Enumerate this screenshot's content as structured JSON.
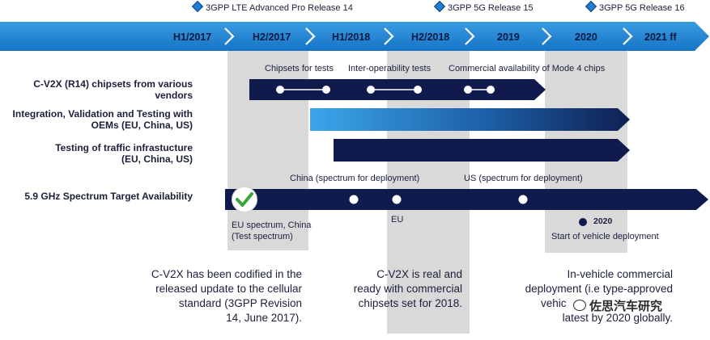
{
  "releases": [
    {
      "label": "3GPP LTE Advanced Pro Release 14"
    },
    {
      "label": "3GPP 5G Release 15"
    },
    {
      "label": "3GPP 5G Release 16"
    }
  ],
  "timeline": [
    "H1/2017",
    "H2/2017",
    "H1/2018",
    "H2/2018",
    "2019",
    "2020",
    "2021 ff"
  ],
  "rows": {
    "chipsets": {
      "label": "C-V2X (R14) chipsets from various vendors",
      "notes": [
        "Chipsets for tests",
        "Inter-operability tests",
        "Commercial availability of Mode 4 chips"
      ]
    },
    "integration": {
      "label_line1": "Integration, Validation and Testing with",
      "label_line2": "OEMs (EU, China, US)"
    },
    "infrastructure": {
      "label_line1": "Testing of traffic infrastucture",
      "label_line2": "(EU, China, US)"
    },
    "spectrum": {
      "label": "5.9 GHz Spectrum Target Availability",
      "china_note": "China (spectrum for deployment)",
      "us_note": "US (spectrum for deployment)",
      "eu_china_line1": "EU spectrum, China",
      "eu_china_line2": "(Test spectrum)",
      "eu_note": "EU",
      "legend_year": "2020",
      "legend_text": "Start of vehicle deployment"
    }
  },
  "paragraphs": {
    "left": [
      "C-V2X has been codified in the",
      "released update to the cellular",
      "standard (3GPP Revision",
      "14, June 2017)."
    ],
    "middle": [
      "C-V2X is real and",
      "ready with commercial",
      "chipsets set for 2018."
    ],
    "right": [
      "In-vehicle commercial",
      "deployment (i.e type-approved",
      "vehic",
      "latest by 2020 globally."
    ]
  },
  "watermark": "佐思汽车研究",
  "colors": {
    "timeline": "#1f86d6",
    "bar_dark": "#101a4d",
    "band": "#d9d9d9",
    "check": "#3aa63a"
  }
}
